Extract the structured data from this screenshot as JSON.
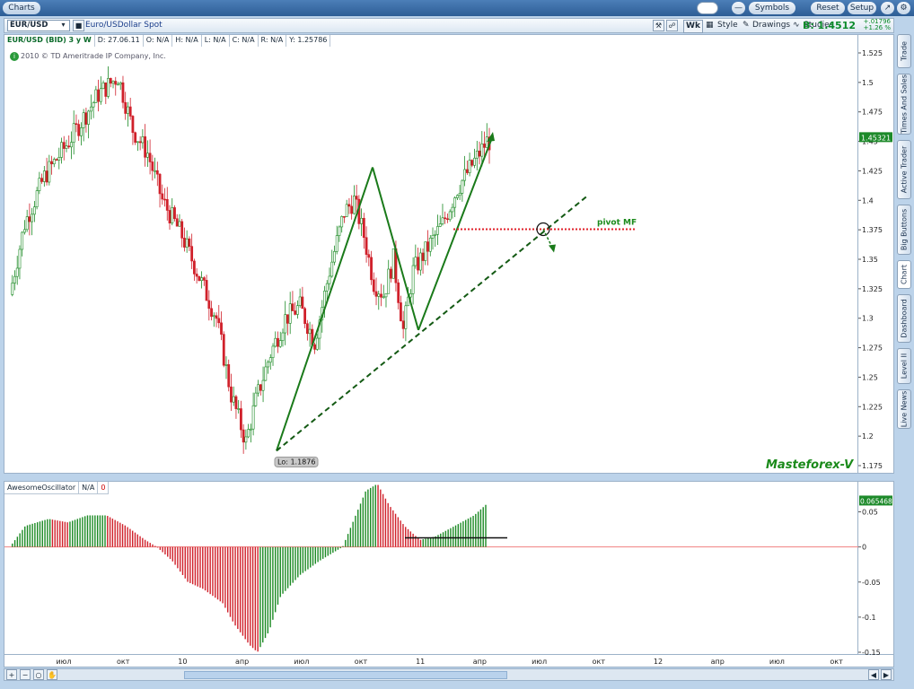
{
  "titlebar": {
    "tab_label": "Charts",
    "symbols_label": "Symbols",
    "reset_label": "Reset",
    "setup_label": "Setup"
  },
  "toolbar": {
    "symbol": "EUR/USD",
    "description": "Euro/USDollar Spot",
    "period_label": "Wk",
    "style_label": "Style",
    "drawings_label": "Drawings",
    "studies_label": "Studies",
    "bid_label": "B: 1.4512",
    "change_abs": "+.01796",
    "change_pct": "+1.26 %"
  },
  "info_bar": {
    "symbol": "EUR/USD (BID) 3 y W",
    "date": "D: 27.06.11",
    "open": "O: N/A",
    "high": "H: N/A",
    "low": "L: N/A",
    "close": "C: N/A",
    "range": "R: N/A",
    "y": "Y: 1.25786"
  },
  "copyright": "2010 © TD Ameritrade IP Company, Inc.",
  "price_axis": {
    "ticks": [
      "1.525",
      "1.5",
      "1.475",
      "1.45",
      "1.425",
      "1.4",
      "1.375",
      "1.35",
      "1.325",
      "1.3",
      "1.275",
      "1.25",
      "1.225",
      "1.2",
      "1.175"
    ],
    "current_price_label": "1.45321"
  },
  "annotations": {
    "low_label": "Lo: 1.1876",
    "pivot_label": "pivot MF",
    "watermark": "Masteforex-V"
  },
  "oscillator": {
    "name": "AwesomeOscillator",
    "value": "N/A",
    "zero": "0",
    "ticks": [
      "0.05",
      "0",
      "-0.05",
      "-0.1",
      "-0.15"
    ],
    "current_label": "0.065468"
  },
  "time_axis": {
    "labels": [
      "июл",
      "окт",
      "10",
      "апр",
      "июл",
      "окт",
      "11",
      "апр",
      "июл",
      "окт",
      "12",
      "апр",
      "июл",
      "окт"
    ]
  },
  "side_tabs": [
    "Trade",
    "Times And Sales",
    "Active Trader",
    "Big Buttons",
    "Chart",
    "Dashboard",
    "Level II",
    "Live News"
  ],
  "chart_data": {
    "type": "candlestick",
    "price_range": [
      1.175,
      1.525
    ],
    "oscillator_range": [
      -0.15,
      0.075
    ]
  }
}
